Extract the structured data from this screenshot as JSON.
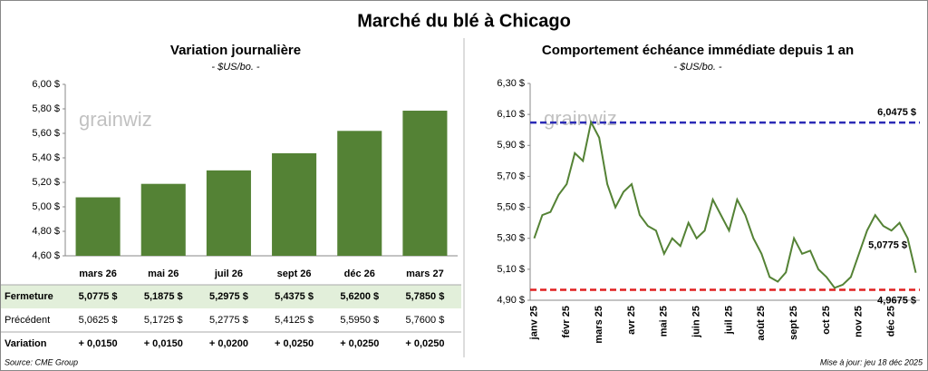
{
  "title": "Marché du blé à Chicago",
  "chart_data": [
    {
      "type": "bar",
      "title": "Variation journalière",
      "subtitle": "- $US/bo. -",
      "watermark": "grainwiz",
      "categories": [
        "mars 26",
        "mai 26",
        "juil 26",
        "sept 26",
        "déc 26",
        "mars 27"
      ],
      "values": [
        5.0775,
        5.1875,
        5.2975,
        5.4375,
        5.62,
        5.785
      ],
      "color": "#548235",
      "ylim": [
        4.6,
        6.0
      ],
      "yticks": [
        {
          "value": 4.6,
          "label": "4,60 $"
        },
        {
          "value": 4.8,
          "label": "4,80 $"
        },
        {
          "value": 5.0,
          "label": "5,00 $"
        },
        {
          "value": 5.2,
          "label": "5,20 $"
        },
        {
          "value": 5.4,
          "label": "5,40 $"
        },
        {
          "value": 5.6,
          "label": "5,60 $"
        },
        {
          "value": 5.8,
          "label": "5,80 $"
        },
        {
          "value": 6.0,
          "label": "6,00 $"
        }
      ],
      "grid": false
    },
    {
      "type": "line",
      "title": "Comportement échéance immédiate depuis 1 an",
      "subtitle": "- $US/bo. -",
      "watermark": "grainwiz",
      "categories": [
        "janv 25",
        null,
        null,
        null,
        "févr 25",
        null,
        null,
        null,
        "mars 25",
        null,
        null,
        null,
        "avr 25",
        null,
        null,
        null,
        "mai 25",
        null,
        null,
        null,
        "juin 25",
        null,
        null,
        null,
        "juil 25",
        null,
        null,
        null,
        "août 25",
        null,
        null,
        null,
        "sept 25",
        null,
        null,
        null,
        "oct 25",
        null,
        null,
        null,
        "nov 25",
        null,
        null,
        null,
        "déc 25",
        null,
        null,
        null
      ],
      "values": [
        5.3,
        5.45,
        5.47,
        5.58,
        5.65,
        5.85,
        5.8,
        6.05,
        5.95,
        5.65,
        5.5,
        5.6,
        5.65,
        5.45,
        5.38,
        5.35,
        5.2,
        5.3,
        5.25,
        5.4,
        5.3,
        5.35,
        5.55,
        5.45,
        5.35,
        5.55,
        5.45,
        5.3,
        5.2,
        5.05,
        5.02,
        5.08,
        5.3,
        5.2,
        5.22,
        5.1,
        5.05,
        4.98,
        5.0,
        5.05,
        5.2,
        5.35,
        5.45,
        5.38,
        5.35,
        5.4,
        5.3,
        5.0775
      ],
      "color": "#548235",
      "ylim": [
        4.9,
        6.3
      ],
      "yticks": [
        {
          "value": 4.9,
          "label": "4,90 $"
        },
        {
          "value": 5.1,
          "label": "5,10 $"
        },
        {
          "value": 5.3,
          "label": "5,30 $"
        },
        {
          "value": 5.5,
          "label": "5,50 $"
        },
        {
          "value": 5.7,
          "label": "5,70 $"
        },
        {
          "value": 5.9,
          "label": "5,90 $"
        },
        {
          "value": 6.1,
          "label": "6,10 $"
        },
        {
          "value": 6.3,
          "label": "6,30 $"
        }
      ],
      "reference_lines": [
        {
          "value": 6.0475,
          "label": "6,0475 $",
          "color": "#2b2bb5"
        },
        {
          "value": 4.9675,
          "label": "4,9675 $",
          "color": "#e02020"
        }
      ],
      "annotations": [
        {
          "text": "5,0775 $"
        }
      ],
      "grid": false
    }
  ],
  "table": {
    "rows": [
      [
        "Fermeture",
        "5,0775 $",
        "5,1875 $",
        "5,2975 $",
        "5,4375 $",
        "5,6200 $",
        "5,7850 $"
      ],
      [
        "Précédent",
        "5,0625 $",
        "5,1725 $",
        "5,2775 $",
        "5,4125 $",
        "5,5950 $",
        "5,7600 $"
      ],
      [
        "Variation",
        "+ 0,0150",
        "+ 0,0150",
        "+ 0,0200",
        "+ 0,0250",
        "+ 0,0250",
        "+ 0,0250"
      ]
    ]
  },
  "footer": {
    "source": "Source: CME Group",
    "updated": "Mise à jour: jeu 18 déc 2025"
  }
}
